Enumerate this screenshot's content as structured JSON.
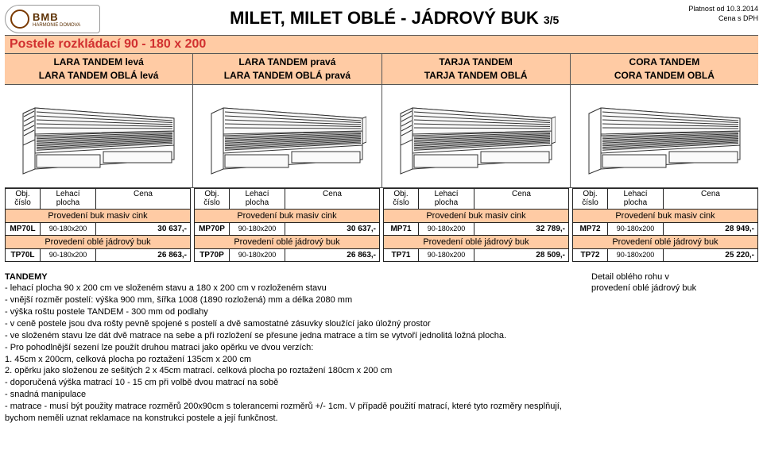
{
  "logo": {
    "brand": "BMB",
    "sub": "HARMONIE DOMOVA"
  },
  "title_main": "MILET, MILET OBLÉ - JÁDROVÝ BUK",
  "page_fraction": "3/5",
  "validity": {
    "line1": "Platnost od 10.3.2014",
    "line2": "Cena s DPH"
  },
  "section_title": "Postele rozkládací  90 - 180 x 200",
  "columns": [
    {
      "line1": "LARA TANDEM levá",
      "line2": "LARA TANDEM OBLÁ levá"
    },
    {
      "line1": "LARA TANDEM pravá",
      "line2": "LARA TANDEM OBLÁ pravá"
    },
    {
      "line1": "TARJA TANDEM",
      "line2": "TARJA TANDEM OBLÁ"
    },
    {
      "line1": "CORA TANDEM",
      "line2": "CORA TANDEM OBLÁ"
    }
  ],
  "head": {
    "obj": "Obj.",
    "cislo": "číslo",
    "lehaci": "Lehací",
    "plocha": "plocha",
    "cena": "Cena"
  },
  "prov_masiv": "Provedení buk masiv cink",
  "prov_oble": "Provedení oblé jádrový buk",
  "tables": [
    {
      "rows": [
        {
          "obj": "MP70L",
          "dim": "90-180x200",
          "price": "30 637,-"
        },
        {
          "obj": "TP70L",
          "dim": "90-180x200",
          "price": "26 863,-"
        }
      ]
    },
    {
      "rows": [
        {
          "obj": "MP70P",
          "dim": "90-180x200",
          "price": "30 637,-"
        },
        {
          "obj": "TP70P",
          "dim": "90-180x200",
          "price": "26 863,-"
        }
      ]
    },
    {
      "rows": [
        {
          "obj": "MP71",
          "dim": "90-180x200",
          "price": "32 789,-"
        },
        {
          "obj": "TP71",
          "dim": "90-180x200",
          "price": "28 509,-"
        }
      ]
    },
    {
      "rows": [
        {
          "obj": "MP72",
          "dim": "90-180x200",
          "price": "28 949,-"
        },
        {
          "obj": "TP72",
          "dim": "90-180x200",
          "price": "25 220,-"
        }
      ]
    }
  ],
  "notes": {
    "title": "TANDEMY",
    "lines": [
      "- lehací plocha 90 x 200 cm ve složeném stavu a 180 x 200 cm v rozloženém stavu",
      "- vnější rozměr postelí: výška 900 mm, šířka 1008 (1890 rozložená) mm a délka 2080 mm",
      "- výška roštu postele TANDEM - 300 mm od podlahy",
      "- v ceně postele jsou dva rošty pevně spojené s postelí a dvě samostatné zásuvky    sloužící jako    úložný prostor",
      "- ve složeném stavu lze dát dvě matrace na sebe a při rozložení se přesune jedna matrace a tím se vytvoří jednolitá ložná plocha.",
      "- Pro pohodlnější sezení lze použít druhou matraci jako opěrku ve dvou verzích:",
      "1.  45cm x 200cm, celková plocha po roztažení 135cm x 200 cm",
      "2.  opěrku jako složenou ze sešitých 2 x 45cm matrací. celková plocha po roztažení 180cm x 200 cm",
      "- doporučená výška matrací 10 - 15 cm při volbě dvou matrací na sobě",
      "- snadná manipulace",
      "- matrace - musí být použity matrace rozměrů 200x90cm s tolerancemi rozměrů +/- 1cm. V případě použití matrací, které tyto rozměry nesplňují, bychom neměli uznat   reklamace na konstrukci postele a její funkčnost."
    ]
  },
  "detail": {
    "line1": "Detail oblého rohu v",
    "line2": "provedení oblé jádrový buk"
  }
}
